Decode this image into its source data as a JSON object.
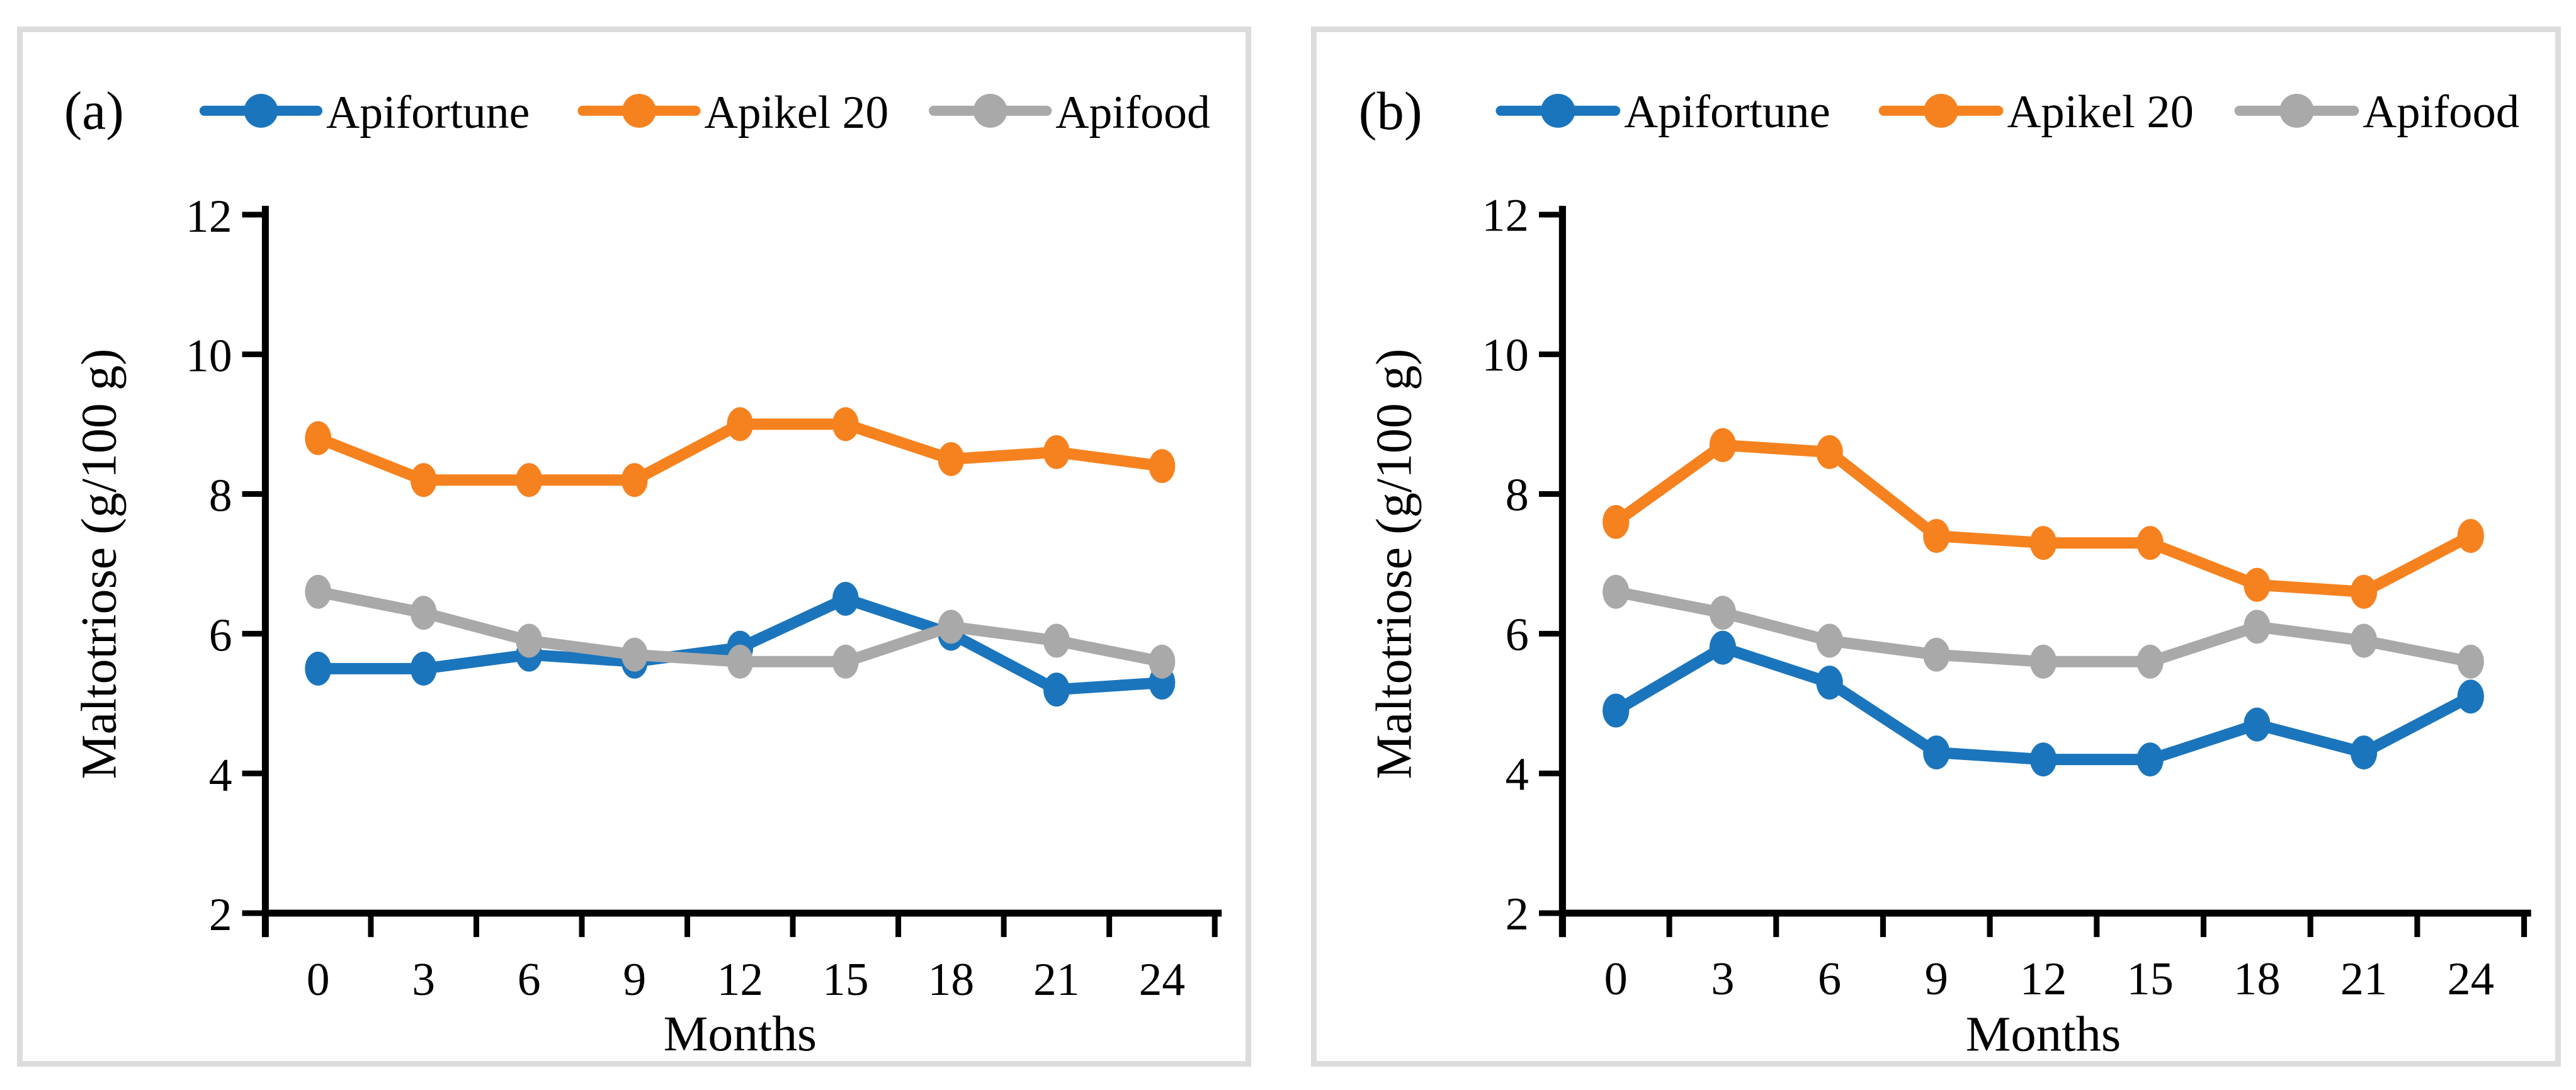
{
  "figure": {
    "background": "#FFFFFF",
    "panel_border_color": "#DCDCDC",
    "text_color": "#000000",
    "panels": [
      {
        "label": "(a)"
      },
      {
        "label": "(b)"
      }
    ]
  },
  "chart_data": [
    {
      "type": "line",
      "panel_label": "(a)",
      "xlabel": "Months",
      "ylabel": "Maltotriose (g/100 g)",
      "x": [
        0,
        3,
        6,
        9,
        12,
        15,
        18,
        21,
        24
      ],
      "ylim": [
        2,
        12
      ],
      "yticks": [
        2,
        4,
        6,
        8,
        10,
        12
      ],
      "grid": false,
      "legend_position": "top",
      "series": [
        {
          "name": "Apifortune",
          "color": "#1B75BC",
          "values": [
            5.5,
            5.5,
            5.7,
            5.6,
            5.8,
            6.5,
            6.0,
            5.2,
            5.3
          ]
        },
        {
          "name": "Apikel 20",
          "color": "#F6821F",
          "values": [
            8.8,
            8.2,
            8.2,
            8.2,
            9.0,
            9.0,
            8.5,
            8.6,
            8.4
          ]
        },
        {
          "name": "Apifood",
          "color": "#A9A9A9",
          "values": [
            6.6,
            6.3,
            5.9,
            5.7,
            5.6,
            5.6,
            6.1,
            5.9,
            5.6
          ]
        }
      ]
    },
    {
      "type": "line",
      "panel_label": "(b)",
      "xlabel": "Months",
      "ylabel": "Maltotriose (g/100 g)",
      "x": [
        0,
        3,
        6,
        9,
        12,
        15,
        18,
        21,
        24
      ],
      "ylim": [
        2,
        12
      ],
      "yticks": [
        2,
        4,
        6,
        8,
        10,
        12
      ],
      "grid": false,
      "legend_position": "top",
      "series": [
        {
          "name": "Apifortune",
          "color": "#1B75BC",
          "values": [
            4.9,
            5.8,
            5.3,
            4.3,
            4.2,
            4.2,
            4.7,
            4.3,
            5.1
          ]
        },
        {
          "name": "Apikel 20",
          "color": "#F6821F",
          "values": [
            7.6,
            8.7,
            8.6,
            7.4,
            7.3,
            7.3,
            6.7,
            6.6,
            7.4
          ]
        },
        {
          "name": "Apifood",
          "color": "#A9A9A9",
          "values": [
            6.6,
            6.3,
            5.9,
            5.7,
            5.6,
            5.6,
            6.1,
            5.9,
            5.6
          ]
        }
      ]
    }
  ]
}
